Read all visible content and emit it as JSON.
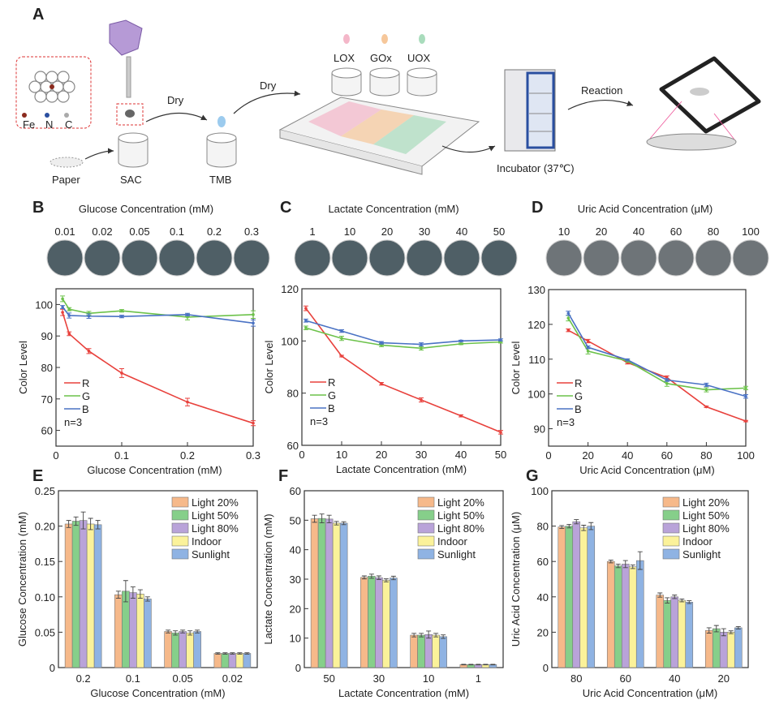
{
  "panel_a": {
    "label": "A",
    "atoms": [
      "Fe",
      "N",
      "C"
    ],
    "paper": "Paper",
    "sac": "SAC",
    "dry1": "Dry",
    "dry2": "Dry",
    "tmb": "TMB",
    "enzymes": [
      "LOX",
      "GOx",
      "UOX"
    ],
    "incubator": "Incubator (37℃)",
    "reaction": "Reaction",
    "colors": {
      "lox": "#f4b7c9",
      "gox": "#f6c79a",
      "uox": "#a9dcbc",
      "incubator": "#2a4fa0"
    }
  },
  "strips": [
    {
      "label": "B",
      "title": "Glucose Concentration (mM)",
      "values": [
        "0.01",
        "0.02",
        "0.05",
        "0.1",
        "0.2",
        "0.3"
      ]
    },
    {
      "label": "C",
      "title": "Lactate Concentration (mM)",
      "values": [
        "1",
        "10",
        "20",
        "30",
        "40",
        "50"
      ]
    },
    {
      "label": "D",
      "title": "Uric Acid Concentration (μM)",
      "values": [
        "10",
        "20",
        "40",
        "60",
        "80",
        "100"
      ]
    }
  ],
  "chart_data": [
    {
      "panel": "B",
      "type": "line",
      "xlabel": "Glucose Concentration (mM)",
      "ylabel": "Color Level",
      "xlim": [
        0,
        0.3
      ],
      "ylim": [
        55,
        105
      ],
      "xticks": [
        "0",
        "0.1",
        "0.2",
        "0.3"
      ],
      "yticks": [
        "60",
        "70",
        "80",
        "90",
        "100"
      ],
      "x": [
        0.01,
        0.02,
        0.05,
        0.1,
        0.2,
        0.3
      ],
      "legend_note": "n=3",
      "legend_position": "bottom-left",
      "series": [
        {
          "name": "R",
          "color": "#e8413c",
          "values": [
            97.5,
            90.7,
            85.2,
            78.2,
            69.0,
            62.3
          ],
          "err": [
            1.0,
            0.6,
            0.8,
            1.4,
            1.2,
            0.8
          ]
        },
        {
          "name": "G",
          "color": "#6cc24a",
          "values": [
            101.8,
            98.5,
            97.2,
            98.0,
            96.0,
            96.8
          ],
          "err": [
            0.9,
            0.5,
            0.6,
            0.4,
            0.9,
            1.2
          ]
        },
        {
          "name": "B",
          "color": "#4a72c4",
          "values": [
            99.2,
            96.5,
            96.3,
            96.2,
            96.8,
            94.1
          ],
          "err": [
            0.5,
            0.8,
            0.7,
            0.4,
            0.4,
            1.0
          ]
        }
      ]
    },
    {
      "panel": "C",
      "type": "line",
      "xlabel": "Lactate Concentration (mM)",
      "ylabel": "Color Level",
      "xlim": [
        0,
        50
      ],
      "ylim": [
        60,
        120
      ],
      "xticks": [
        "0",
        "10",
        "20",
        "30",
        "40",
        "50"
      ],
      "yticks": [
        "60",
        "80",
        "100",
        "120"
      ],
      "x": [
        1,
        10,
        20,
        30,
        40,
        50
      ],
      "legend_note": "n=3",
      "legend_position": "bottom-left",
      "series": [
        {
          "name": "R",
          "color": "#e8413c",
          "values": [
            112.5,
            94.2,
            83.6,
            77.4,
            71.3,
            65.0
          ],
          "err": [
            0.9,
            0.3,
            0.5,
            0.8,
            0.4,
            0.7
          ]
        },
        {
          "name": "G",
          "color": "#6cc24a",
          "values": [
            105.0,
            101.0,
            98.4,
            97.2,
            98.9,
            99.6
          ],
          "err": [
            0.7,
            0.8,
            0.6,
            0.7,
            0.3,
            0.4
          ]
        },
        {
          "name": "B",
          "color": "#4a72c4",
          "values": [
            107.8,
            103.8,
            99.3,
            98.7,
            100.0,
            100.4
          ],
          "err": [
            0.6,
            0.5,
            0.5,
            0.6,
            0.3,
            0.4
          ]
        }
      ]
    },
    {
      "panel": "D",
      "type": "line",
      "xlabel": "Uric Acid Concentration (μM)",
      "ylabel": "Color Level",
      "xlim": [
        0,
        100
      ],
      "ylim": [
        85,
        130
      ],
      "xticks": [
        "0",
        "20",
        "40",
        "60",
        "80",
        "100"
      ],
      "yticks": [
        "90",
        "100",
        "110",
        "120",
        "130"
      ],
      "x": [
        10,
        20,
        40,
        60,
        80,
        100
      ],
      "legend_note": "n=3",
      "legend_position": "bottom-left",
      "series": [
        {
          "name": "R",
          "color": "#e8413c",
          "values": [
            118.3,
            115.2,
            109.0,
            104.7,
            96.3,
            92.2
          ],
          "err": [
            0.4,
            0.5,
            0.4,
            0.5,
            0.2,
            0.2
          ]
        },
        {
          "name": "G",
          "color": "#6cc24a",
          "values": [
            121.8,
            112.3,
            109.5,
            103.0,
            101.2,
            101.7
          ],
          "err": [
            0.8,
            0.8,
            0.4,
            0.8,
            0.6,
            0.5
          ]
        },
        {
          "name": "B",
          "color": "#4a72c4",
          "values": [
            123.2,
            113.4,
            109.8,
            104.0,
            102.6,
            99.3
          ],
          "err": [
            0.6,
            0.4,
            0.3,
            0.4,
            0.5,
            0.5
          ]
        }
      ]
    },
    {
      "panel": "E",
      "type": "bar",
      "xlabel": "Glucose Concentration (mM)",
      "ylabel": "Glucose Concentration (mM)",
      "ylim": [
        0,
        0.25
      ],
      "yticks": [
        "0",
        "0.05",
        "0.10",
        "0.15",
        "0.20",
        "0.25"
      ],
      "categories": [
        "0.2",
        "0.1",
        "0.05",
        "0.02"
      ],
      "legend_position": "top-right",
      "series": [
        {
          "name": "Light 20%",
          "color": "#f6b98a",
          "values": [
            0.203,
            0.103,
            0.051,
            0.02
          ],
          "err": [
            0.005,
            0.005,
            0.002,
            0.001
          ]
        },
        {
          "name": "Light 50%",
          "color": "#86cf8a",
          "values": [
            0.207,
            0.108,
            0.049,
            0.02
          ],
          "err": [
            0.006,
            0.015,
            0.003,
            0.001
          ]
        },
        {
          "name": "Light 80%",
          "color": "#b9a3d9",
          "values": [
            0.208,
            0.106,
            0.051,
            0.02
          ],
          "err": [
            0.012,
            0.008,
            0.002,
            0.001
          ]
        },
        {
          "name": "Indoor",
          "color": "#fbf29a",
          "values": [
            0.203,
            0.104,
            0.049,
            0.02
          ],
          "err": [
            0.008,
            0.006,
            0.003,
            0.001
          ]
        },
        {
          "name": "Sunlight",
          "color": "#8fb3e3",
          "values": [
            0.202,
            0.097,
            0.051,
            0.02
          ],
          "err": [
            0.006,
            0.003,
            0.002,
            0.001
          ]
        }
      ]
    },
    {
      "panel": "F",
      "type": "bar",
      "xlabel": "Lactate Concentration (mM)",
      "ylabel": "Lactate Concentration (mM)",
      "ylim": [
        0,
        60
      ],
      "yticks": [
        "0",
        "10",
        "20",
        "30",
        "40",
        "50",
        "60"
      ],
      "categories": [
        "50",
        "30",
        "10",
        "1"
      ],
      "legend_position": "top-right",
      "series": [
        {
          "name": "Light 20%",
          "color": "#f6b98a",
          "values": [
            50.5,
            30.6,
            11.0,
            1.0
          ],
          "err": [
            1.2,
            0.5,
            0.6,
            0.1
          ]
        },
        {
          "name": "Light 50%",
          "color": "#86cf8a",
          "values": [
            50.6,
            31.0,
            11.0,
            1.0
          ],
          "err": [
            1.5,
            0.7,
            0.6,
            0.1
          ]
        },
        {
          "name": "Light 80%",
          "color": "#b9a3d9",
          "values": [
            50.4,
            30.5,
            11.2,
            1.0
          ],
          "err": [
            1.3,
            0.6,
            1.2,
            0.1
          ]
        },
        {
          "name": "Indoor",
          "color": "#fbf29a",
          "values": [
            49.0,
            29.6,
            11.0,
            1.0
          ],
          "err": [
            0.6,
            0.5,
            0.6,
            0.1
          ]
        },
        {
          "name": "Sunlight",
          "color": "#8fb3e3",
          "values": [
            49.0,
            30.4,
            10.5,
            1.0
          ],
          "err": [
            0.5,
            0.6,
            0.6,
            0.1
          ]
        }
      ]
    },
    {
      "panel": "G",
      "type": "bar",
      "xlabel": "Uric Acid Concentration (μM)",
      "ylabel": "Uric Acid Concentration (μM)",
      "ylim": [
        0,
        100
      ],
      "yticks": [
        "0",
        "20",
        "40",
        "60",
        "80",
        "100"
      ],
      "categories": [
        "80",
        "60",
        "40",
        "20"
      ],
      "legend_position": "top-right",
      "series": [
        {
          "name": "Light 20%",
          "color": "#f6b98a",
          "values": [
            79.5,
            60.0,
            41.0,
            21.0
          ],
          "err": [
            0.8,
            0.8,
            1.2,
            1.5
          ]
        },
        {
          "name": "Light 50%",
          "color": "#86cf8a",
          "values": [
            80.0,
            57.5,
            38.0,
            22.0
          ],
          "err": [
            1.0,
            1.0,
            1.5,
            1.8
          ]
        },
        {
          "name": "Light 80%",
          "color": "#b9a3d9",
          "values": [
            82.5,
            58.5,
            40.0,
            20.0
          ],
          "err": [
            1.2,
            2.0,
            1.0,
            2.0
          ]
        },
        {
          "name": "Indoor",
          "color": "#fbf29a",
          "values": [
            79.0,
            57.0,
            38.0,
            20.0
          ],
          "err": [
            1.5,
            1.0,
            0.8,
            0.8
          ]
        },
        {
          "name": "Sunlight",
          "color": "#8fb3e3",
          "values": [
            80.0,
            60.5,
            37.0,
            22.5
          ],
          "err": [
            2.0,
            5.0,
            0.8,
            0.7
          ]
        }
      ]
    }
  ]
}
